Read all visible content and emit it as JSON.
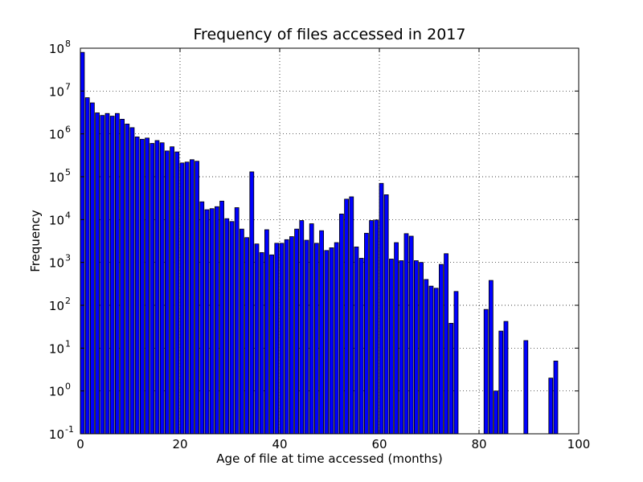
{
  "chart_data": {
    "type": "bar",
    "title": "Frequency of files accessed in 2017",
    "xlabel": "Age of file at time accessed (months)",
    "ylabel": "Frequency",
    "xlim": [
      0,
      100
    ],
    "ylim": [
      0.1,
      100000000
    ],
    "yscale": "log",
    "grid": true,
    "x_ticks": [
      "0",
      "20",
      "40",
      "60",
      "80",
      "100"
    ],
    "y_ticks": [
      {
        "base": "10",
        "exp": "-1"
      },
      {
        "base": "10",
        "exp": "0"
      },
      {
        "base": "10",
        "exp": "1"
      },
      {
        "base": "10",
        "exp": "2"
      },
      {
        "base": "10",
        "exp": "3"
      },
      {
        "base": "10",
        "exp": "4"
      },
      {
        "base": "10",
        "exp": "5"
      },
      {
        "base": "10",
        "exp": "6"
      },
      {
        "base": "10",
        "exp": "7"
      },
      {
        "base": "10",
        "exp": "8"
      }
    ],
    "bar_width": 0.8,
    "bar_color": "#0000ff",
    "x": [
      0,
      1,
      2,
      3,
      4,
      5,
      6,
      7,
      8,
      9,
      10,
      11,
      12,
      13,
      14,
      15,
      16,
      17,
      18,
      19,
      20,
      21,
      22,
      23,
      24,
      25,
      26,
      27,
      28,
      29,
      30,
      31,
      32,
      33,
      34,
      35,
      36,
      37,
      38,
      39,
      40,
      41,
      42,
      43,
      44,
      45,
      46,
      47,
      48,
      49,
      50,
      51,
      52,
      53,
      54,
      55,
      56,
      57,
      58,
      59,
      60,
      61,
      62,
      63,
      64,
      65,
      66,
      67,
      68,
      69,
      70,
      71,
      72,
      73,
      74,
      75,
      81,
      82,
      83,
      84,
      85,
      89,
      94,
      95
    ],
    "values": [
      80000000,
      7000000,
      5300000,
      3100000,
      2700000,
      3000000,
      2600000,
      3000000,
      2200000,
      1700000,
      1400000,
      850000,
      750000,
      800000,
      600000,
      700000,
      620000,
      400000,
      500000,
      380000,
      210000,
      220000,
      250000,
      230000,
      26000,
      17000,
      18000,
      20000,
      27000,
      10500,
      9000,
      19000,
      6000,
      3800,
      130000,
      2700,
      1700,
      5800,
      1500,
      2800,
      2800,
      3400,
      4000,
      6000,
      9500,
      3300,
      8000,
      2800,
      5500,
      1900,
      2200,
      2900,
      13500,
      30000,
      34000,
      2300,
      1250,
      4800,
      9500,
      9800,
      70000,
      38000,
      1200,
      2900,
      1100,
      4700,
      4100,
      1100,
      1000,
      400,
      280,
      250,
      900,
      1600,
      38,
      210,
      80,
      380,
      1,
      25,
      42,
      15,
      2,
      5
    ]
  }
}
